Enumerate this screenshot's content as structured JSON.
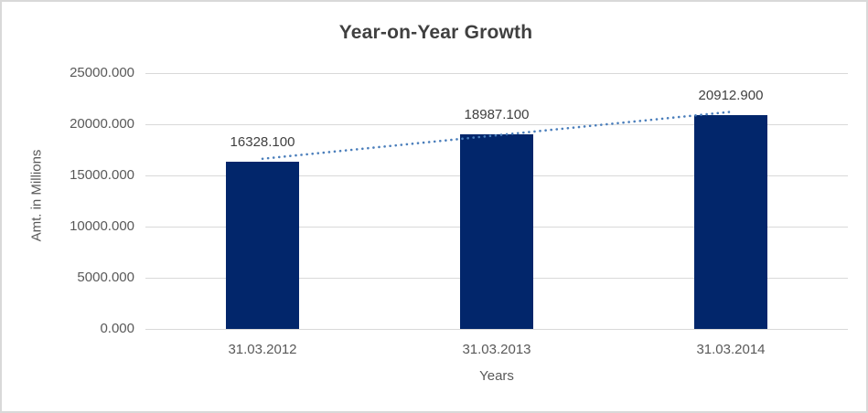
{
  "chart_data": {
    "type": "bar",
    "title": "Year-on-Year Growth",
    "xlabel": "Years",
    "ylabel": "Amt. in Millions",
    "categories": [
      "31.03.2012",
      "31.03.2013",
      "31.03.2014"
    ],
    "values": [
      16328.1,
      18987.1,
      20912.9
    ],
    "data_labels": [
      "16328.100",
      "18987.100",
      "20912.900"
    ],
    "ylim": [
      0,
      25000
    ],
    "ytick_step": 5000,
    "ytick_labels": [
      "0.000",
      "5000.000",
      "10000.000",
      "15000.000",
      "20000.000",
      "25000.000"
    ],
    "decimals": 3,
    "grid": "horizontal",
    "legend": "none",
    "trendline": {
      "type": "linear",
      "style": "dotted",
      "color": "#4a7ebb"
    },
    "colors": {
      "bar": "#02266b",
      "gridline": "#d9d9d9",
      "tick_text": "#595959",
      "label_text": "#404040",
      "title_text": "#404040",
      "frame_border": "#d9d9d9"
    }
  }
}
